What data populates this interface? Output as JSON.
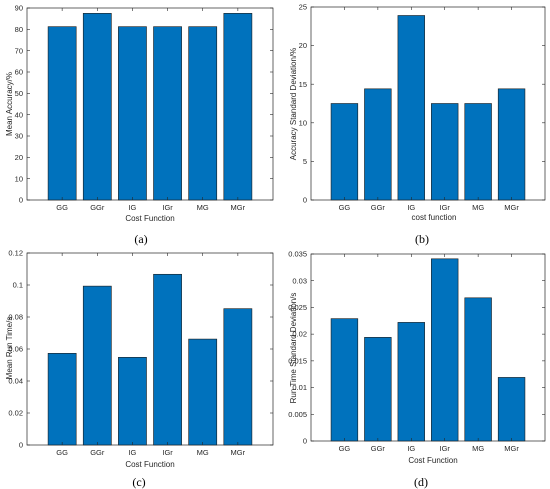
{
  "colors": {
    "bar": "#0072BD",
    "axis": "#262626"
  },
  "chart_data": [
    {
      "type": "bar",
      "panel_label": "(a)",
      "categories": [
        "GG",
        "GGr",
        "IG",
        "IGr",
        "MG",
        "MGr"
      ],
      "values": [
        81.25,
        87.5,
        81.25,
        81.25,
        81.25,
        87.5
      ],
      "xlabel": "Cost Function",
      "ylabel": "Mean Accuracy/%",
      "ylim": [
        0,
        90
      ],
      "yticks": [
        0,
        10,
        20,
        30,
        40,
        50,
        60,
        70,
        80,
        90
      ],
      "ytick_labels": [
        "0",
        "10",
        "20",
        "30",
        "40",
        "50",
        "60",
        "70",
        "80",
        "90"
      ],
      "grid": false
    },
    {
      "type": "bar",
      "panel_label": "(b)",
      "categories": [
        "GG",
        "GGr",
        "IG",
        "IGr",
        "MG",
        "MGr"
      ],
      "values": [
        12.5,
        14.4,
        23.9,
        12.5,
        12.5,
        14.4
      ],
      "xlabel": "cost function",
      "ylabel": "Accuracy Standard Deviation/%",
      "ylim": [
        0,
        25
      ],
      "yticks": [
        0,
        5,
        10,
        15,
        20,
        25
      ],
      "ytick_labels": [
        "0",
        "5",
        "10",
        "15",
        "20",
        "25"
      ],
      "grid": false
    },
    {
      "type": "bar",
      "panel_label": "(c)",
      "categories": [
        "GG",
        "GGr",
        "IG",
        "IGr",
        "MG",
        "MGr"
      ],
      "values": [
        0.0573,
        0.0993,
        0.0548,
        0.1067,
        0.0662,
        0.0852
      ],
      "xlabel": "Cost Function",
      "ylabel": "Mean Run Time/s",
      "ylim": [
        0,
        0.12
      ],
      "yticks": [
        0,
        0.02,
        0.04,
        0.06,
        0.08,
        0.1,
        0.12
      ],
      "ytick_labels": [
        "0",
        "0.02",
        "0.04",
        "0.06",
        "0.08",
        "0.1",
        "0.12"
      ],
      "grid": false
    },
    {
      "type": "bar",
      "panel_label": "(d)",
      "categories": [
        "GG",
        "GGr",
        "IG",
        "IGr",
        "MG",
        "MGr"
      ],
      "values": [
        0.0229,
        0.0194,
        0.0222,
        0.0341,
        0.0268,
        0.0119
      ],
      "xlabel": "Cost Function",
      "ylabel": "Run Time Standard Deviation/s",
      "ylim": [
        0,
        0.035
      ],
      "yticks": [
        0,
        0.005,
        0.01,
        0.015,
        0.02,
        0.025,
        0.03,
        0.035
      ],
      "ytick_labels": [
        "0",
        "0.005",
        "0.01",
        "0.015",
        "0.02",
        "0.025",
        "0.03",
        "0.035"
      ],
      "grid": false
    }
  ]
}
